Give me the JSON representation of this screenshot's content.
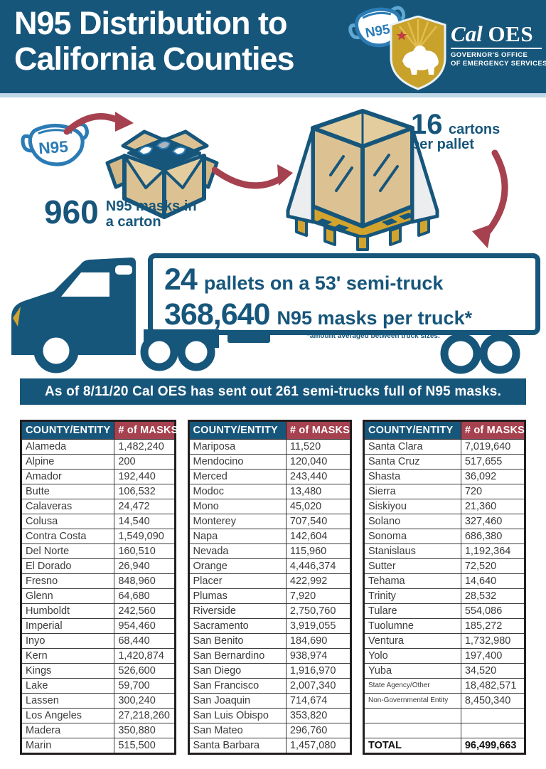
{
  "colors": {
    "teal": "#17567B",
    "maroon": "#A6414F",
    "gold": "#D2A42E",
    "tan": "#DCC293",
    "mask_blue": "#2B7CB5",
    "header_border": "#BFD8E6",
    "table_border": "#231F20"
  },
  "header": {
    "title_line1": "N95 Distribution to",
    "title_line2": "California Counties",
    "logo": {
      "mask_label": "N95",
      "brand_cal": "Cal",
      "brand_oes": "OES",
      "sub_line1": "GOVERNOR'S OFFICE",
      "sub_line2": "OF EMERGENCY SERVICES"
    }
  },
  "infographic": {
    "mask_label": "N95",
    "carton": {
      "value": "960",
      "label_line1": "N95 masks in",
      "label_line2": "a carton"
    },
    "pallet": {
      "value": "16",
      "label_line1": "cartons",
      "label_line2": "per pallet"
    },
    "truck": {
      "value1": "24",
      "text1": "pallets on a 53' semi-truck",
      "value2": "368,640",
      "text2": "N95 masks per truck*",
      "footnote": "*amount averaged between truck sizes."
    }
  },
  "banner": {
    "text": "As of 8/11/20 Cal OES has sent out 261 semi-trucks full of N95 masks."
  },
  "tables": {
    "col1_header": "COUNTY/ENTITY",
    "col2_header": "# of MASKS",
    "sections": [
      [
        {
          "name": "Alameda",
          "value": "1,482,240"
        },
        {
          "name": "Alpine",
          "value": "200"
        },
        {
          "name": "Amador",
          "value": "192,440"
        },
        {
          "name": "Butte",
          "value": "106,532"
        },
        {
          "name": "Calaveras",
          "value": "24,472"
        },
        {
          "name": "Colusa",
          "value": "14,540"
        },
        {
          "name": "Contra Costa",
          "value": "1,549,090"
        },
        {
          "name": "Del Norte",
          "value": "160,510"
        },
        {
          "name": "El Dorado",
          "value": "26,940"
        },
        {
          "name": "Fresno",
          "value": "848,960"
        },
        {
          "name": "Glenn",
          "value": "64,680"
        },
        {
          "name": "Humboldt",
          "value": "242,560"
        },
        {
          "name": "Imperial",
          "value": "954,460"
        },
        {
          "name": "Inyo",
          "value": "68,440"
        },
        {
          "name": "Kern",
          "value": "1,420,874"
        },
        {
          "name": "Kings",
          "value": "526,600"
        },
        {
          "name": "Lake",
          "value": "59,700"
        },
        {
          "name": "Lassen",
          "value": "300,240"
        },
        {
          "name": "Los Angeles",
          "value": "27,218,260"
        },
        {
          "name": "Madera",
          "value": "350,880"
        },
        {
          "name": "Marin",
          "value": "515,500"
        }
      ],
      [
        {
          "name": "Mariposa",
          "value": "11,520"
        },
        {
          "name": "Mendocino",
          "value": "120,040"
        },
        {
          "name": "Merced",
          "value": "243,440"
        },
        {
          "name": "Modoc",
          "value": "13,480"
        },
        {
          "name": "Mono",
          "value": "45,020"
        },
        {
          "name": "Monterey",
          "value": "707,540"
        },
        {
          "name": "Napa",
          "value": "142,604"
        },
        {
          "name": "Nevada",
          "value": "115,960"
        },
        {
          "name": "Orange",
          "value": "4,446,374"
        },
        {
          "name": "Placer",
          "value": "422,992"
        },
        {
          "name": "Plumas",
          "value": "7,920"
        },
        {
          "name": "Riverside",
          "value": "2,750,760"
        },
        {
          "name": "Sacramento",
          "value": "3,919,055"
        },
        {
          "name": "San Benito",
          "value": "184,690"
        },
        {
          "name": "San Bernardino",
          "value": "938,974"
        },
        {
          "name": "San Diego",
          "value": "1,916,970"
        },
        {
          "name": "San Francisco",
          "value": "2,007,340"
        },
        {
          "name": "San Joaquin",
          "value": "714,674"
        },
        {
          "name": "San Luis Obispo",
          "value": "353,820"
        },
        {
          "name": "San Mateo",
          "value": "296,760"
        },
        {
          "name": "Santa Barbara",
          "value": "1,457,080"
        }
      ],
      [
        {
          "name": "Santa Clara",
          "value": "7,019,640"
        },
        {
          "name": "Santa Cruz",
          "value": "517,655"
        },
        {
          "name": "Shasta",
          "value": "36,092"
        },
        {
          "name": "Sierra",
          "value": "720"
        },
        {
          "name": "Siskiyou",
          "value": "21,360"
        },
        {
          "name": "Solano",
          "value": "327,460"
        },
        {
          "name": "Sonoma",
          "value": "686,380"
        },
        {
          "name": "Stanislaus",
          "value": "1,192,364"
        },
        {
          "name": "Sutter",
          "value": "72,520"
        },
        {
          "name": "Tehama",
          "value": "14,640"
        },
        {
          "name": "Trinity",
          "value": "28,532"
        },
        {
          "name": "Tulare",
          "value": "554,086"
        },
        {
          "name": "Tuolumne",
          "value": "185,272"
        },
        {
          "name": "Ventura",
          "value": "1,732,980"
        },
        {
          "name": "Yolo",
          "value": "197,400"
        },
        {
          "name": "Yuba",
          "value": "34,520"
        },
        {
          "name": "State Agency/Other",
          "value": "18,482,571",
          "small": true
        },
        {
          "name": "Non-Governmental Entity",
          "value": "8,450,340",
          "small": true
        },
        {
          "name": "",
          "value": "",
          "empty": true
        },
        {
          "name": "",
          "value": "",
          "empty": true
        },
        {
          "name": "TOTAL",
          "value": "96,499,663",
          "bold": true
        }
      ]
    ]
  }
}
